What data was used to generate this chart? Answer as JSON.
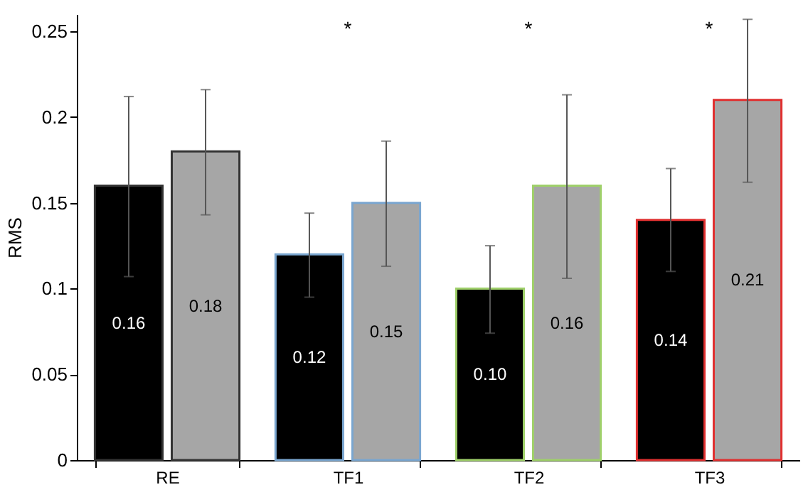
{
  "chart_data": {
    "type": "bar",
    "ylabel": "RMS",
    "categories": [
      "RE",
      "TF1",
      "TF2",
      "TF3"
    ],
    "series": [
      {
        "color": "#000000",
        "values": [
          0.16,
          0.12,
          0.1,
          0.14
        ],
        "value_labels": [
          "0.16",
          "0.12",
          "0.10",
          "0.14"
        ],
        "errors": [
          [
            0.107,
            0.212
          ],
          [
            0.095,
            0.144
          ],
          [
            0.074,
            0.125
          ],
          [
            0.11,
            0.17
          ]
        ]
      },
      {
        "color": "#a6a6a6",
        "values": [
          0.18,
          0.15,
          0.16,
          0.21
        ],
        "value_labels": [
          "0.18",
          "0.15",
          "0.16",
          "0.21"
        ],
        "errors": [
          [
            0.143,
            0.216
          ],
          [
            0.113,
            0.186
          ],
          [
            0.106,
            0.213
          ],
          [
            0.162,
            0.257
          ]
        ]
      }
    ],
    "ylim": [
      0,
      0.26
    ],
    "yticks": [
      0,
      0.05,
      {
        "value": 0.1,
        "label": "0.1"
      },
      0.15,
      {
        "value": 0.2,
        "label": "0.2"
      },
      0.25
    ],
    "annotations": [
      "*",
      "*",
      "*"
    ],
    "grid": false
  }
}
